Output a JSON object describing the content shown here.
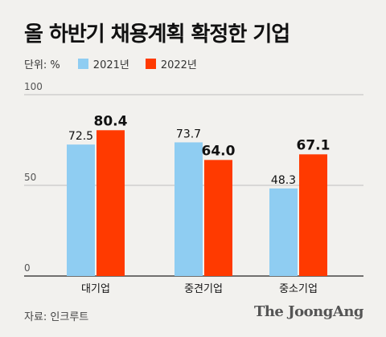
{
  "title": "올 하반기 채용계획 확정한 기업",
  "legend": {
    "unit_label": "단위: %",
    "items": [
      {
        "label": "2021년",
        "color": "#8fcdf2"
      },
      {
        "label": "2022년",
        "color": "#ff3a00"
      }
    ]
  },
  "chart_data": {
    "type": "bar",
    "title": "올 하반기 채용계획 확정한 기업",
    "unit": "%",
    "categories": [
      "대기업",
      "중견기업",
      "중소기업"
    ],
    "series": [
      {
        "name": "2021년",
        "color": "#8fcdf2",
        "values": [
          72.5,
          73.7,
          48.3
        ]
      },
      {
        "name": "2022년",
        "color": "#ff3a00",
        "values": [
          80.4,
          64.0,
          67.1
        ]
      }
    ],
    "y_ticks": [
      0,
      50,
      100
    ],
    "ylim": [
      0,
      100
    ],
    "value_labels": [
      [
        "72.5",
        "73.7",
        "48.3"
      ],
      [
        "80.4",
        "64.0",
        "67.1"
      ]
    ],
    "grid": true
  },
  "source": "자료: 인크루트",
  "brand": "The JoongAng"
}
